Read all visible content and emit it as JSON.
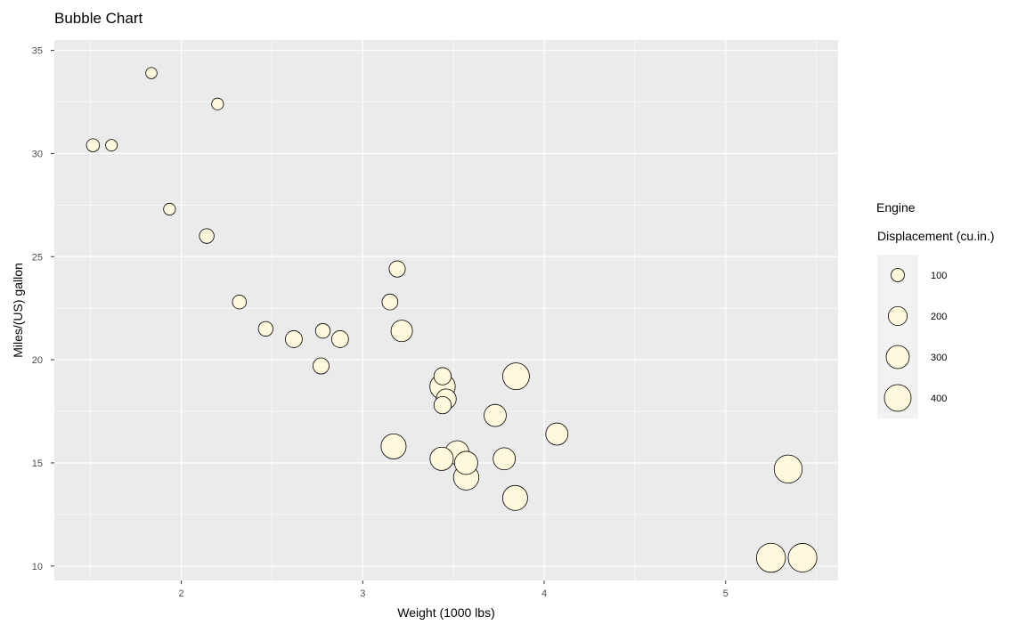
{
  "chart_data": {
    "type": "scatter",
    "title": "Bubble Chart",
    "xlabel": "Weight (1000 lbs)",
    "ylabel": "Miles/(US) gallon",
    "xlim": [
      1.3,
      5.62
    ],
    "ylim": [
      9.3,
      35.5
    ],
    "xticks": [
      2,
      3,
      4,
      5
    ],
    "yticks": [
      10,
      15,
      20,
      25,
      30,
      35
    ],
    "grid": true,
    "background": "#EBEBEB",
    "grid_color": "#FFFFFF",
    "point_fill": "#FFF8DC",
    "point_stroke": "#000000",
    "size_variable": "Engine Displacement (cu.in.)",
    "legend": {
      "title_line1": "Engine",
      "title_line2": "Displacement (cu.in.)",
      "position": "right",
      "values": [
        100,
        200,
        300,
        400
      ]
    },
    "points": [
      {
        "x": 2.62,
        "y": 21.0,
        "size": 160
      },
      {
        "x": 2.875,
        "y": 21.0,
        "size": 160
      },
      {
        "x": 2.32,
        "y": 22.8,
        "size": 108
      },
      {
        "x": 3.215,
        "y": 21.4,
        "size": 258
      },
      {
        "x": 3.44,
        "y": 18.7,
        "size": 360
      },
      {
        "x": 3.46,
        "y": 18.1,
        "size": 225
      },
      {
        "x": 3.57,
        "y": 14.3,
        "size": 360
      },
      {
        "x": 3.19,
        "y": 24.4,
        "size": 146.7
      },
      {
        "x": 3.15,
        "y": 22.8,
        "size": 140.8
      },
      {
        "x": 3.44,
        "y": 19.2,
        "size": 167.6
      },
      {
        "x": 3.44,
        "y": 17.8,
        "size": 167.6
      },
      {
        "x": 4.07,
        "y": 16.4,
        "size": 275.8
      },
      {
        "x": 3.73,
        "y": 17.3,
        "size": 275.8
      },
      {
        "x": 3.78,
        "y": 15.2,
        "size": 275.8
      },
      {
        "x": 5.25,
        "y": 10.4,
        "size": 472
      },
      {
        "x": 5.424,
        "y": 10.4,
        "size": 460
      },
      {
        "x": 5.345,
        "y": 14.7,
        "size": 440
      },
      {
        "x": 2.2,
        "y": 32.4,
        "size": 78.7
      },
      {
        "x": 1.615,
        "y": 30.4,
        "size": 75.7
      },
      {
        "x": 1.835,
        "y": 33.9,
        "size": 71.1
      },
      {
        "x": 2.465,
        "y": 21.5,
        "size": 120.1
      },
      {
        "x": 3.52,
        "y": 15.5,
        "size": 318
      },
      {
        "x": 3.435,
        "y": 15.2,
        "size": 304
      },
      {
        "x": 3.84,
        "y": 13.3,
        "size": 350
      },
      {
        "x": 3.845,
        "y": 19.2,
        "size": 400
      },
      {
        "x": 1.935,
        "y": 27.3,
        "size": 79
      },
      {
        "x": 2.14,
        "y": 26.0,
        "size": 120.3
      },
      {
        "x": 1.513,
        "y": 30.4,
        "size": 95.1
      },
      {
        "x": 3.17,
        "y": 15.8,
        "size": 351
      },
      {
        "x": 2.77,
        "y": 19.7,
        "size": 145
      },
      {
        "x": 3.57,
        "y": 15.0,
        "size": 301
      },
      {
        "x": 2.78,
        "y": 21.4,
        "size": 121
      }
    ]
  }
}
